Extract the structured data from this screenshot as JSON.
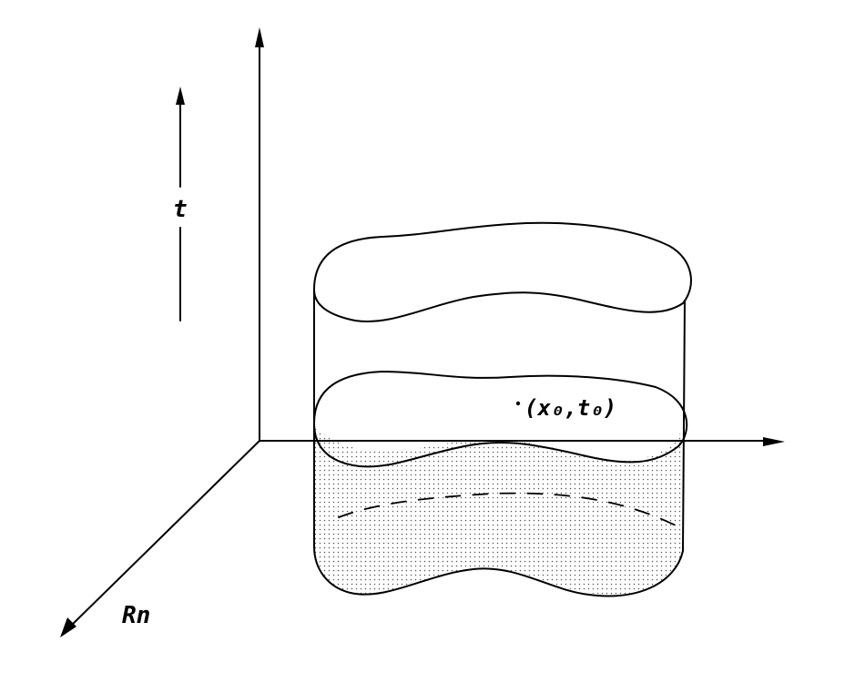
{
  "labels": {
    "time_axis": "t",
    "space_axis": "Rn",
    "point": "(x₀,t₀)"
  },
  "colors": {
    "ink": "#000000",
    "background": "#ffffff",
    "stipple": "#555555"
  }
}
